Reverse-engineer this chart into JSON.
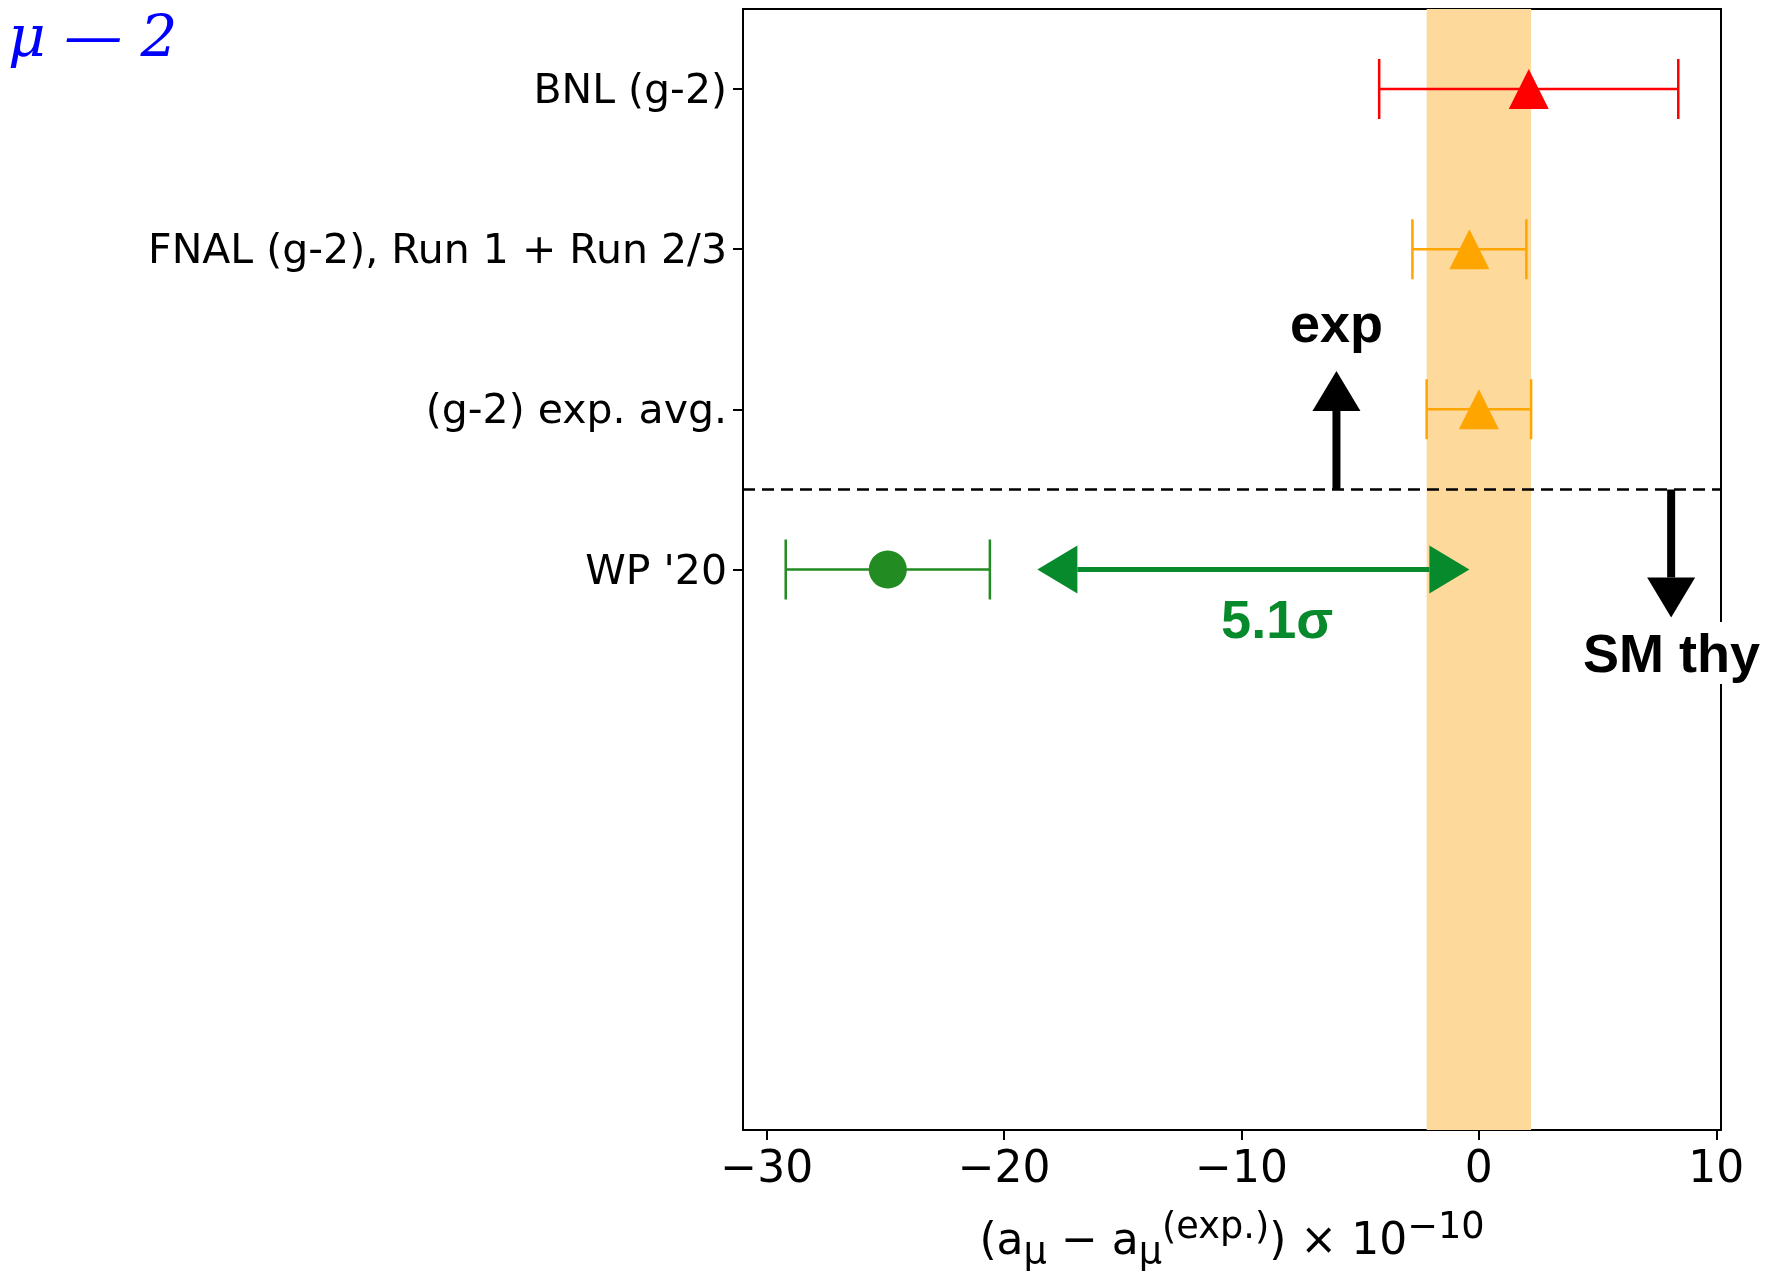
{
  "chart_data": {
    "type": "scatter",
    "orientation": "horizontal",
    "xlabel": "(a$_{μ}$ − a$_{μ}$$^{(exp.)}$) × 10$^{−10}$",
    "xlim": [
      -31,
      10.2
    ],
    "xticks": [
      -30,
      -20,
      -10,
      0,
      10
    ],
    "categories": [
      "BNL (g-2)",
      "FNAL (g-2), Run 1 + Run 2/3",
      "(g-2) exp. avg.",
      "WP '20",
      null,
      null,
      null
    ],
    "series": [
      {
        "values": [
          2.1,
          null,
          null,
          null,
          null,
          null,
          null
        ],
        "errors": [
          6.3,
          null,
          null,
          null,
          null,
          null,
          null
        ],
        "color": "#ff0000",
        "marker": "triangle"
      },
      {
        "values": [
          null,
          -0.4,
          null,
          null,
          null,
          null,
          null
        ],
        "errors": [
          null,
          2.4,
          null,
          null,
          null,
          null,
          null
        ],
        "color": "#ffa500",
        "marker": "triangle"
      },
      {
        "values": [
          null,
          null,
          0.0,
          null,
          null,
          null,
          null
        ],
        "errors": [
          null,
          null,
          2.2,
          null,
          null,
          null,
          null
        ],
        "color": "#ffa500",
        "marker": "triangle"
      },
      {
        "values": [
          null,
          null,
          null,
          -24.9,
          null,
          null,
          null
        ],
        "errors": [
          null,
          null,
          null,
          4.3,
          null,
          null,
          null
        ],
        "color": "#228b22",
        "marker": "circle"
      }
    ],
    "bands": [
      {
        "axis": "x",
        "from": -2.2,
        "to": 2.2,
        "color": "#fdd99b"
      }
    ],
    "annotations": [
      "μ — 2",
      "exp",
      "SM thy",
      "5.1σ"
    ],
    "grid": false
  }
}
